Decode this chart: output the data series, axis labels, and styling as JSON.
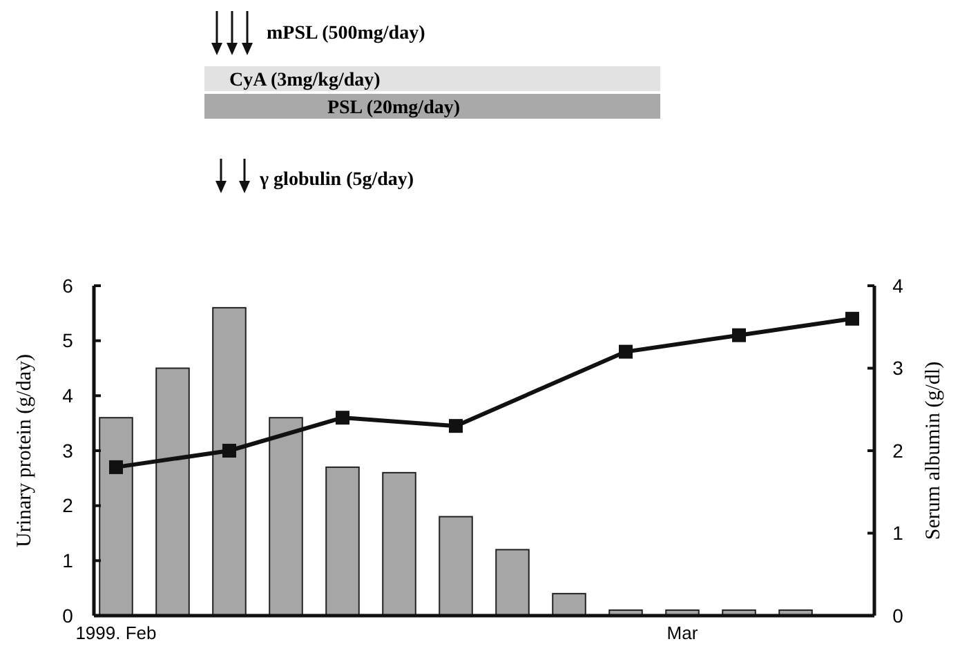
{
  "chart_data": {
    "type": "bar",
    "categories": [
      "1999. Feb",
      null,
      null,
      null,
      null,
      null,
      null,
      null,
      null,
      null,
      "Mar",
      null,
      null,
      null
    ],
    "ylabel": "Urinary protein (g/day)",
    "y2label": "Serum albumin (g/dl)",
    "ylim": [
      0,
      6
    ],
    "yticks": [
      0,
      1,
      2,
      3,
      4,
      5,
      6
    ],
    "y2lim": [
      0,
      4
    ],
    "y2ticks": [
      0,
      1,
      2,
      3,
      4
    ],
    "grid": false,
    "annotations": [
      "mPSL (500mg/day)",
      "CyA (3mg/kg/day)",
      "PSL (20mg/day)",
      "γ globulin (5g/day)"
    ],
    "series": [
      {
        "color": "#a6a6a6",
        "values": [
          3.6,
          4.5,
          5.6,
          3.6,
          2.7,
          2.6,
          1.8,
          1.2,
          0.4,
          0.1,
          0.1,
          0.1,
          0.1,
          null
        ]
      },
      {
        "type": "line",
        "axis": "y2",
        "color": "#111111",
        "marker": "square",
        "values": [
          1.8,
          null,
          2.0,
          null,
          2.4,
          null,
          2.3,
          null,
          null,
          3.2,
          null,
          3.4,
          null,
          3.6
        ]
      }
    ]
  }
}
